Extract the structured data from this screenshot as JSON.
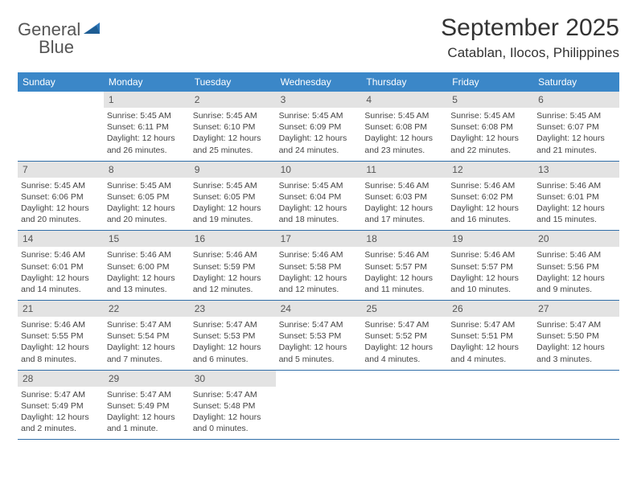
{
  "logo": {
    "line1": "General",
    "line2": "Blue"
  },
  "title": "September 2025",
  "location": "Catablan, Ilocos, Philippines",
  "colors": {
    "header_bg": "#3b87c8",
    "header_text": "#ffffff",
    "daynum_bg": "#e3e3e3",
    "daynum_text": "#555555",
    "body_text": "#444444",
    "rule": "#2f6da8",
    "logo_blue": "#2f77b8",
    "page_bg": "#ffffff"
  },
  "weekdays": [
    "Sunday",
    "Monday",
    "Tuesday",
    "Wednesday",
    "Thursday",
    "Friday",
    "Saturday"
  ],
  "weeks": [
    [
      {
        "n": "",
        "sunrise": "",
        "sunset": "",
        "daylight": ""
      },
      {
        "n": "1",
        "sunrise": "5:45 AM",
        "sunset": "6:11 PM",
        "daylight": "12 hours and 26 minutes."
      },
      {
        "n": "2",
        "sunrise": "5:45 AM",
        "sunset": "6:10 PM",
        "daylight": "12 hours and 25 minutes."
      },
      {
        "n": "3",
        "sunrise": "5:45 AM",
        "sunset": "6:09 PM",
        "daylight": "12 hours and 24 minutes."
      },
      {
        "n": "4",
        "sunrise": "5:45 AM",
        "sunset": "6:08 PM",
        "daylight": "12 hours and 23 minutes."
      },
      {
        "n": "5",
        "sunrise": "5:45 AM",
        "sunset": "6:08 PM",
        "daylight": "12 hours and 22 minutes."
      },
      {
        "n": "6",
        "sunrise": "5:45 AM",
        "sunset": "6:07 PM",
        "daylight": "12 hours and 21 minutes."
      }
    ],
    [
      {
        "n": "7",
        "sunrise": "5:45 AM",
        "sunset": "6:06 PM",
        "daylight": "12 hours and 20 minutes."
      },
      {
        "n": "8",
        "sunrise": "5:45 AM",
        "sunset": "6:05 PM",
        "daylight": "12 hours and 20 minutes."
      },
      {
        "n": "9",
        "sunrise": "5:45 AM",
        "sunset": "6:05 PM",
        "daylight": "12 hours and 19 minutes."
      },
      {
        "n": "10",
        "sunrise": "5:45 AM",
        "sunset": "6:04 PM",
        "daylight": "12 hours and 18 minutes."
      },
      {
        "n": "11",
        "sunrise": "5:46 AM",
        "sunset": "6:03 PM",
        "daylight": "12 hours and 17 minutes."
      },
      {
        "n": "12",
        "sunrise": "5:46 AM",
        "sunset": "6:02 PM",
        "daylight": "12 hours and 16 minutes."
      },
      {
        "n": "13",
        "sunrise": "5:46 AM",
        "sunset": "6:01 PM",
        "daylight": "12 hours and 15 minutes."
      }
    ],
    [
      {
        "n": "14",
        "sunrise": "5:46 AM",
        "sunset": "6:01 PM",
        "daylight": "12 hours and 14 minutes."
      },
      {
        "n": "15",
        "sunrise": "5:46 AM",
        "sunset": "6:00 PM",
        "daylight": "12 hours and 13 minutes."
      },
      {
        "n": "16",
        "sunrise": "5:46 AM",
        "sunset": "5:59 PM",
        "daylight": "12 hours and 12 minutes."
      },
      {
        "n": "17",
        "sunrise": "5:46 AM",
        "sunset": "5:58 PM",
        "daylight": "12 hours and 12 minutes."
      },
      {
        "n": "18",
        "sunrise": "5:46 AM",
        "sunset": "5:57 PM",
        "daylight": "12 hours and 11 minutes."
      },
      {
        "n": "19",
        "sunrise": "5:46 AM",
        "sunset": "5:57 PM",
        "daylight": "12 hours and 10 minutes."
      },
      {
        "n": "20",
        "sunrise": "5:46 AM",
        "sunset": "5:56 PM",
        "daylight": "12 hours and 9 minutes."
      }
    ],
    [
      {
        "n": "21",
        "sunrise": "5:46 AM",
        "sunset": "5:55 PM",
        "daylight": "12 hours and 8 minutes."
      },
      {
        "n": "22",
        "sunrise": "5:47 AM",
        "sunset": "5:54 PM",
        "daylight": "12 hours and 7 minutes."
      },
      {
        "n": "23",
        "sunrise": "5:47 AM",
        "sunset": "5:53 PM",
        "daylight": "12 hours and 6 minutes."
      },
      {
        "n": "24",
        "sunrise": "5:47 AM",
        "sunset": "5:53 PM",
        "daylight": "12 hours and 5 minutes."
      },
      {
        "n": "25",
        "sunrise": "5:47 AM",
        "sunset": "5:52 PM",
        "daylight": "12 hours and 4 minutes."
      },
      {
        "n": "26",
        "sunrise": "5:47 AM",
        "sunset": "5:51 PM",
        "daylight": "12 hours and 4 minutes."
      },
      {
        "n": "27",
        "sunrise": "5:47 AM",
        "sunset": "5:50 PM",
        "daylight": "12 hours and 3 minutes."
      }
    ],
    [
      {
        "n": "28",
        "sunrise": "5:47 AM",
        "sunset": "5:49 PM",
        "daylight": "12 hours and 2 minutes."
      },
      {
        "n": "29",
        "sunrise": "5:47 AM",
        "sunset": "5:49 PM",
        "daylight": "12 hours and 1 minute."
      },
      {
        "n": "30",
        "sunrise": "5:47 AM",
        "sunset": "5:48 PM",
        "daylight": "12 hours and 0 minutes."
      },
      {
        "n": "",
        "sunrise": "",
        "sunset": "",
        "daylight": ""
      },
      {
        "n": "",
        "sunrise": "",
        "sunset": "",
        "daylight": ""
      },
      {
        "n": "",
        "sunrise": "",
        "sunset": "",
        "daylight": ""
      },
      {
        "n": "",
        "sunrise": "",
        "sunset": "",
        "daylight": ""
      }
    ]
  ],
  "labels": {
    "sunrise": "Sunrise:",
    "sunset": "Sunset:",
    "daylight": "Daylight:"
  }
}
